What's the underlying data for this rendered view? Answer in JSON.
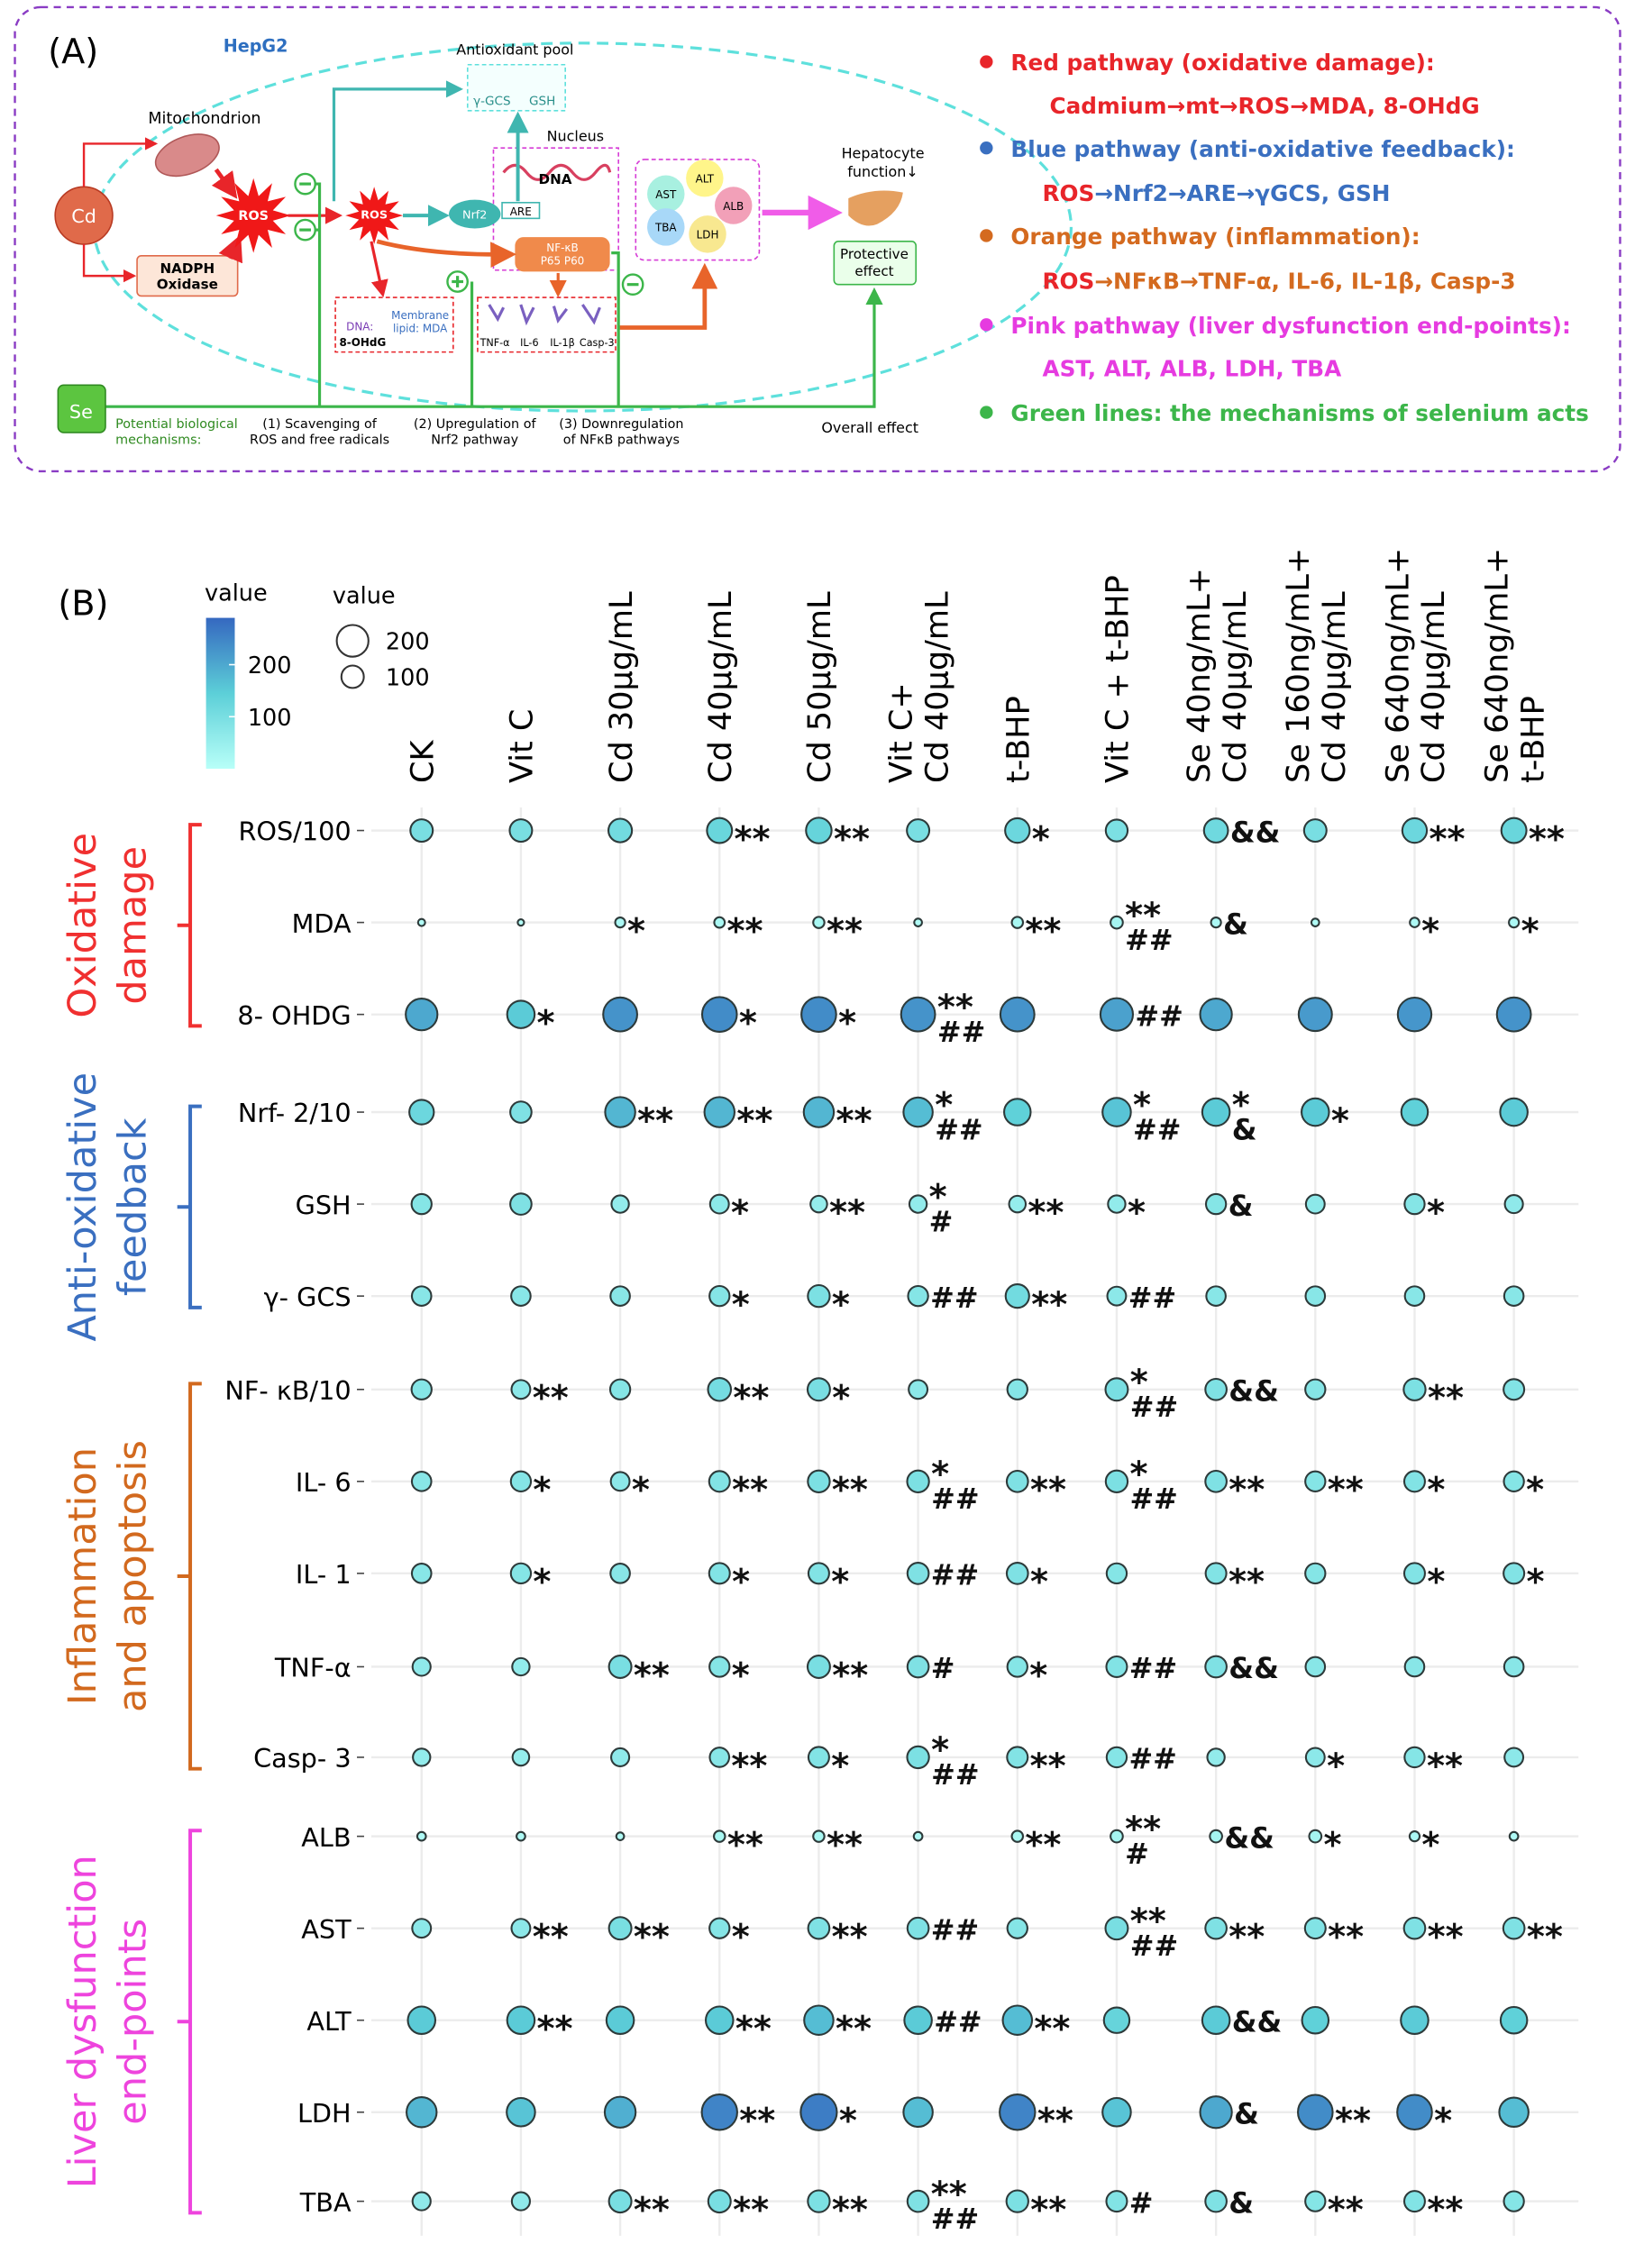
{
  "panel_a": {
    "label": "(A)",
    "cell": "HepG2",
    "cd": "Cd",
    "mitochondrion": "Mitochondrion",
    "nadph": [
      "NADPH",
      "Oxidase"
    ],
    "ros": [
      "ROS",
      "ROS"
    ],
    "antioxidant_pool": "Antioxidant pool",
    "pool_items": [
      "γ-GCS",
      "GSH"
    ],
    "nucleus": "Nucleus",
    "dna": "DNA",
    "are": "ARE",
    "nrf2": "Nrf2",
    "nfkb": [
      "NF-κB",
      "P65 P60"
    ],
    "damage_box": [
      "DNA:",
      "Membrane",
      "lipid: MDA",
      "8-OHdG"
    ],
    "cytokines": [
      "TNF-α",
      "IL-6",
      "IL-1β",
      "Casp-3"
    ],
    "enzymes": [
      "AST",
      "ALT",
      "ALB",
      "TBA",
      "LDH"
    ],
    "hepatocyte": [
      "Hepatocyte",
      "function↓"
    ],
    "protective": [
      "Protective",
      "effect"
    ],
    "se": "Se",
    "mechanisms_title": [
      "Potential biological",
      "mechanisms:"
    ],
    "mechanisms": [
      [
        "(1) Scavenging of",
        "ROS and free radicals"
      ],
      [
        "(2) Upregulation of",
        "Nrf2 pathway"
      ],
      [
        "(3) Downregulation",
        "of NFκB pathways"
      ]
    ],
    "overall": "Overall effect",
    "legend": [
      {
        "heading": "Red pathway (oxidative damage):",
        "detail": [
          "Cadmium→mt→ROS→MDA, 8-OHdG"
        ]
      },
      {
        "heading": "Blue pathway (anti-oxidative feedback):",
        "detail": [
          "ROS",
          "→Nrf2→ARE→γGCS, GSH"
        ]
      },
      {
        "heading": "Orange pathway (inflammation):",
        "detail": [
          "ROS",
          "→NFκB→TNF-α, IL-6, IL-1β, Casp-3"
        ]
      },
      {
        "heading": "Pink pathway (liver dysfunction end-points):",
        "detail": [
          "AST, ALT, ALB, LDH, TBA"
        ]
      },
      {
        "heading": "Green lines: the mechanisms of selenium acts"
      }
    ]
  },
  "chart_data": {
    "type": "bubble",
    "label": "(B)",
    "categories": [
      [
        "CK"
      ],
      [
        "Vit C"
      ],
      [
        "Cd 30μg/mL"
      ],
      [
        "Cd 40μg/mL"
      ],
      [
        "Cd 50μg/mL"
      ],
      [
        "Vit C+",
        "Cd 40μg/mL"
      ],
      [
        "t-BHP"
      ],
      [
        "Vit C + t-BHP"
      ],
      [
        "Se 40ng/mL+",
        "Cd 40μg/mL"
      ],
      [
        "Se 160ng/mL+",
        "Cd 40μg/mL"
      ],
      [
        "Se 640ng/mL+",
        "Cd 40μg/mL"
      ],
      [
        "Se 640ng/mL+",
        "t-BHP"
      ]
    ],
    "groups": [
      {
        "label": [
          "Oxidative",
          "damage"
        ],
        "color": "#f03030"
      },
      {
        "label": [
          "Anti-oxidative",
          "feedback"
        ],
        "color": "#3a6fc0"
      },
      {
        "label": [
          "Inflammation",
          "and apoptosis"
        ],
        "color": "#d2691e"
      },
      {
        "label": [
          "Liver dysfunction",
          "end-points"
        ],
        "color": "#ee44dd"
      }
    ],
    "clim": [
      0,
      290
    ],
    "colormap": [
      "#b8fff8",
      "#5ccfd8",
      "#3568c0"
    ],
    "color_legend": {
      "title": "value",
      "ticks": [
        200,
        100
      ]
    },
    "size_legend": {
      "title": "value",
      "values": [
        200,
        100
      ]
    },
    "series": [
      {
        "name": "ROS/100",
        "values": [
          100,
          100,
          110,
          125,
          130,
          100,
          120,
          95,
          115,
          100,
          120,
          125
        ],
        "annotations": [
          null,
          null,
          null,
          [
            "**"
          ],
          [
            "**"
          ],
          null,
          [
            "*"
          ],
          null,
          [
            "&&"
          ],
          null,
          [
            "**"
          ],
          [
            "**"
          ]
        ]
      },
      {
        "name": "MDA",
        "values": [
          10,
          8,
          20,
          22,
          25,
          12,
          25,
          30,
          20,
          12,
          18,
          20
        ],
        "annotations": [
          null,
          null,
          [
            "*"
          ],
          [
            "**"
          ],
          [
            "**"
          ],
          null,
          [
            "**"
          ],
          [
            "**",
            "##"
          ],
          [
            "&"
          ],
          null,
          [
            "*"
          ],
          [
            "*"
          ]
        ]
      },
      {
        "name": "8- OHDG",
        "values": [
          200,
          150,
          230,
          240,
          240,
          230,
          230,
          210,
          200,
          220,
          225,
          230
        ],
        "annotations": [
          null,
          [
            "*"
          ],
          null,
          [
            "*"
          ],
          [
            "*"
          ],
          [
            "**",
            "##"
          ],
          null,
          [
            "##"
          ],
          null,
          null,
          null,
          null
        ]
      },
      {
        "name": "Nrf- 2/10",
        "values": [
          120,
          90,
          180,
          180,
          180,
          170,
          140,
          160,
          150,
          150,
          140,
          150
        ],
        "annotations": [
          null,
          null,
          [
            "**"
          ],
          [
            "**"
          ],
          [
            "**"
          ],
          [
            "*",
            "##"
          ],
          null,
          [
            "*",
            "##"
          ],
          [
            "*",
            "&"
          ],
          [
            "*"
          ],
          null,
          null
        ]
      },
      {
        "name": "GSH",
        "values": [
          80,
          90,
          60,
          70,
          55,
          60,
          55,
          60,
          80,
          70,
          80,
          65
        ],
        "annotations": [
          null,
          null,
          null,
          [
            "*"
          ],
          [
            "**"
          ],
          [
            "*",
            "#"
          ],
          [
            "**"
          ],
          [
            "*"
          ],
          [
            "&"
          ],
          null,
          [
            "*"
          ],
          null
        ]
      },
      {
        "name": "γ- GCS",
        "values": [
          75,
          75,
          75,
          80,
          95,
          80,
          110,
          70,
          75,
          75,
          75,
          75
        ],
        "annotations": [
          null,
          null,
          null,
          [
            "*"
          ],
          [
            "*"
          ],
          [
            "##"
          ],
          [
            "**"
          ],
          [
            "##"
          ],
          null,
          null,
          null,
          null
        ]
      },
      {
        "name": "NF- κB/10",
        "values": [
          80,
          70,
          80,
          105,
          100,
          70,
          80,
          100,
          90,
          80,
          95,
          85
        ],
        "annotations": [
          null,
          [
            "**"
          ],
          null,
          [
            "**"
          ],
          [
            "*"
          ],
          null,
          null,
          [
            "*",
            "##"
          ],
          [
            "&&"
          ],
          null,
          [
            "**"
          ],
          null
        ]
      },
      {
        "name": "IL- 6",
        "values": [
          75,
          80,
          70,
          85,
          95,
          95,
          90,
          95,
          90,
          80,
          85,
          80
        ],
        "annotations": [
          null,
          [
            "*"
          ],
          [
            "*"
          ],
          [
            "**"
          ],
          [
            "**"
          ],
          [
            "*",
            "##"
          ],
          [
            "**"
          ],
          [
            "*",
            "##"
          ],
          [
            "**"
          ],
          [
            "**"
          ],
          [
            "*"
          ],
          [
            "*"
          ]
        ]
      },
      {
        "name": "IL- 1",
        "values": [
          75,
          80,
          75,
          85,
          85,
          90,
          90,
          80,
          85,
          80,
          85,
          85
        ],
        "annotations": [
          null,
          [
            "*"
          ],
          null,
          [
            "*"
          ],
          [
            "*"
          ],
          [
            "##"
          ],
          [
            "*"
          ],
          null,
          [
            "**"
          ],
          null,
          [
            "*"
          ],
          [
            "*"
          ]
        ]
      },
      {
        "name": "TNF-α",
        "values": [
          65,
          60,
          100,
          80,
          100,
          90,
          80,
          85,
          90,
          75,
          75,
          75
        ],
        "annotations": [
          null,
          null,
          [
            "**"
          ],
          [
            "*"
          ],
          [
            "**"
          ],
          [
            "#"
          ],
          [
            "*"
          ],
          [
            "##"
          ],
          [
            "&&"
          ],
          null,
          null,
          null
        ]
      },
      {
        "name": "Casp- 3",
        "values": [
          60,
          55,
          65,
          75,
          85,
          95,
          85,
          80,
          60,
          70,
          80,
          70
        ],
        "annotations": [
          null,
          null,
          null,
          [
            "**"
          ],
          [
            "*"
          ],
          [
            "*",
            "##"
          ],
          [
            "**"
          ],
          [
            "##"
          ],
          null,
          [
            "*"
          ],
          [
            "**"
          ],
          null
        ]
      },
      {
        "name": "ALB",
        "values": [
          15,
          15,
          12,
          25,
          25,
          15,
          25,
          30,
          30,
          30,
          20,
          15
        ],
        "annotations": [
          null,
          null,
          null,
          [
            "**"
          ],
          [
            "**"
          ],
          null,
          [
            "**"
          ],
          [
            "**",
            "#"
          ],
          [
            "&&"
          ],
          [
            "*"
          ],
          [
            "*"
          ],
          null
        ]
      },
      {
        "name": "AST",
        "values": [
          70,
          70,
          100,
          80,
          90,
          90,
          80,
          100,
          90,
          85,
          90,
          90
        ],
        "annotations": [
          null,
          [
            "**"
          ],
          [
            "**"
          ],
          [
            "*"
          ],
          [
            "**"
          ],
          [
            "##"
          ],
          null,
          [
            "**",
            "##"
          ],
          [
            "**"
          ],
          [
            "**"
          ],
          [
            "**"
          ],
          [
            "**"
          ]
        ]
      },
      {
        "name": "ALT",
        "values": [
          150,
          150,
          150,
          150,
          170,
          150,
          170,
          130,
          150,
          140,
          150,
          140
        ],
        "annotations": [
          null,
          [
            "**"
          ],
          null,
          [
            "**"
          ],
          [
            "**"
          ],
          [
            "##"
          ],
          [
            "**"
          ],
          null,
          [
            "&&"
          ],
          null,
          null,
          null
        ]
      },
      {
        "name": "LDH",
        "values": [
          180,
          160,
          190,
          250,
          260,
          170,
          250,
          160,
          200,
          240,
          240,
          170
        ],
        "annotations": [
          null,
          null,
          null,
          [
            "**"
          ],
          [
            "*"
          ],
          null,
          [
            "**"
          ],
          null,
          [
            "&"
          ],
          [
            "**"
          ],
          [
            "*"
          ],
          null
        ]
      },
      {
        "name": "TBA",
        "values": [
          65,
          65,
          100,
          100,
          95,
          90,
          95,
          85,
          90,
          80,
          85,
          80
        ],
        "annotations": [
          null,
          null,
          [
            "**"
          ],
          [
            "**"
          ],
          [
            "**"
          ],
          [
            "**",
            "##"
          ],
          [
            "**"
          ],
          [
            "#"
          ],
          [
            "&"
          ],
          [
            "**"
          ],
          [
            "**"
          ],
          null
        ]
      }
    ]
  }
}
